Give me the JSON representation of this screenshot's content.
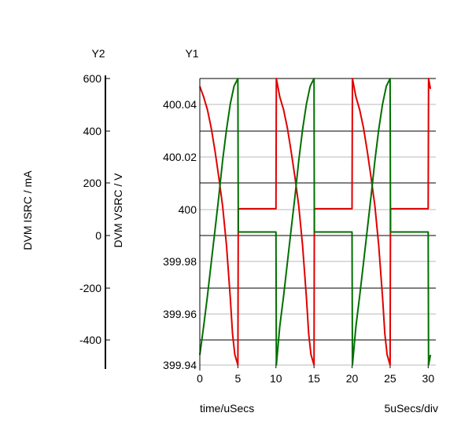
{
  "chart_data": {
    "type": "line",
    "y1_axis": {
      "title": "Y1",
      "label": "DVM VSRC / V",
      "ticks": [
        "400.04",
        "400.02",
        "400",
        "399.98",
        "399.96",
        "399.94"
      ],
      "range": [
        399.94,
        400.05
      ]
    },
    "y2_axis": {
      "title": "Y2",
      "label": "DVM ISRC / mA",
      "ticks": [
        "600",
        "400",
        "200",
        "0",
        "-200",
        "-400"
      ],
      "range": [
        -520,
        600
      ]
    },
    "x_axis": {
      "label": "time/uSecs",
      "scale_label": "5uSecs/div",
      "ticks": [
        "0",
        "5",
        "10",
        "15",
        "20",
        "25",
        "30"
      ],
      "range": [
        0,
        31
      ]
    },
    "grid": true,
    "series": [
      {
        "axis": "y1",
        "color": "#e00000",
        "points": [
          [
            0,
            400.047
          ],
          [
            0.5,
            400.043
          ],
          [
            1,
            400.038
          ],
          [
            1.5,
            400.031
          ],
          [
            2,
            400.022
          ],
          [
            2.5,
            400.012
          ],
          [
            3,
            400.001
          ],
          [
            3.5,
            399.986
          ],
          [
            4,
            399.966
          ],
          [
            4.3,
            399.952
          ],
          [
            4.6,
            399.944
          ],
          [
            5,
            399.94
          ],
          [
            5.05,
            400.0
          ],
          [
            10,
            400.0
          ],
          [
            10.05,
            400.05
          ],
          [
            10.5,
            400.043
          ],
          [
            11,
            400.038
          ],
          [
            11.5,
            400.031
          ],
          [
            12,
            400.022
          ],
          [
            12.5,
            400.012
          ],
          [
            13,
            400.001
          ],
          [
            13.5,
            399.986
          ],
          [
            14,
            399.966
          ],
          [
            14.3,
            399.952
          ],
          [
            14.6,
            399.944
          ],
          [
            15,
            399.94
          ],
          [
            15.05,
            400.0
          ],
          [
            20,
            400.0
          ],
          [
            20.05,
            400.05
          ],
          [
            20.5,
            400.043
          ],
          [
            21,
            400.038
          ],
          [
            21.5,
            400.031
          ],
          [
            22,
            400.022
          ],
          [
            22.5,
            400.012
          ],
          [
            23,
            400.001
          ],
          [
            23.5,
            399.986
          ],
          [
            24,
            399.966
          ],
          [
            24.3,
            399.952
          ],
          [
            24.6,
            399.944
          ],
          [
            25,
            399.94
          ],
          [
            25.05,
            400.0
          ],
          [
            30,
            400.0
          ],
          [
            30.05,
            400.05
          ],
          [
            30.3,
            400.046
          ]
        ]
      },
      {
        "axis": "y2",
        "color": "#007000",
        "points": [
          [
            0,
            -480
          ],
          [
            0.5,
            -370
          ],
          [
            1,
            -250
          ],
          [
            1.5,
            -120
          ],
          [
            2,
            10
          ],
          [
            2.5,
            140
          ],
          [
            3,
            280
          ],
          [
            3.5,
            400
          ],
          [
            4,
            500
          ],
          [
            4.5,
            570
          ],
          [
            5,
            600
          ],
          [
            5.05,
            0
          ],
          [
            10,
            0
          ],
          [
            10.05,
            -520
          ],
          [
            10.5,
            -370
          ],
          [
            11,
            -250
          ],
          [
            11.5,
            -120
          ],
          [
            12,
            10
          ],
          [
            12.5,
            140
          ],
          [
            13,
            280
          ],
          [
            13.5,
            400
          ],
          [
            14,
            500
          ],
          [
            14.5,
            570
          ],
          [
            15,
            600
          ],
          [
            15.05,
            0
          ],
          [
            20,
            0
          ],
          [
            20.05,
            -520
          ],
          [
            20.5,
            -370
          ],
          [
            21,
            -250
          ],
          [
            21.5,
            -120
          ],
          [
            22,
            10
          ],
          [
            22.5,
            140
          ],
          [
            23,
            280
          ],
          [
            23.5,
            400
          ],
          [
            24,
            500
          ],
          [
            24.5,
            570
          ],
          [
            25,
            600
          ],
          [
            25.05,
            0
          ],
          [
            30,
            0
          ],
          [
            30.05,
            -520
          ],
          [
            30.3,
            -480
          ]
        ]
      }
    ]
  }
}
